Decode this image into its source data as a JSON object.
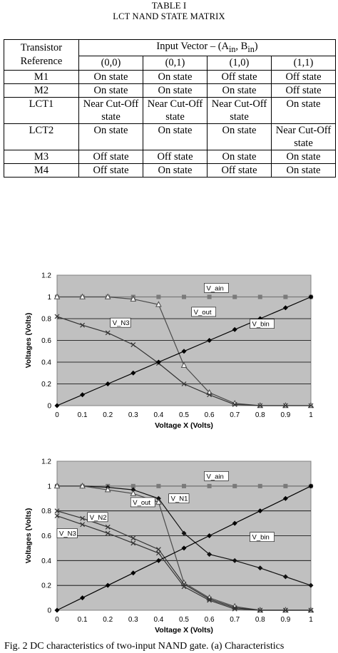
{
  "table": {
    "label": "TABLE I",
    "title": "LCT NAND STATE MATRIX",
    "header_ref": "Transistor Reference",
    "header_input": "Input Vector – (A",
    "header_input_sub_a": "in",
    "header_input_sep": ", B",
    "header_input_sub_b": "in",
    "header_input_end": ")",
    "columns": [
      "(0,0)",
      "(0,1)",
      "(1,0)",
      "(1,1)"
    ],
    "rows": [
      {
        "ref": "M1",
        "cells": [
          "On state",
          "On state",
          "Off state",
          "Off state"
        ]
      },
      {
        "ref": "M2",
        "cells": [
          "On state",
          "On state",
          "On state",
          "Off state"
        ]
      },
      {
        "ref": "LCT1",
        "cells": [
          "Near Cut-Off state",
          "Near Cut-Off state",
          "Near Cut-Off state",
          "On state"
        ]
      },
      {
        "ref": "LCT2",
        "cells": [
          "On state",
          "On state",
          "On state",
          "Near Cut-Off state"
        ]
      },
      {
        "ref": "M3",
        "cells": [
          "Off state",
          "Off state",
          "On state",
          "On state"
        ]
      },
      {
        "ref": "M4",
        "cells": [
          "Off state",
          "On state",
          "Off state",
          "On state"
        ]
      }
    ]
  },
  "chart_data": [
    {
      "type": "line",
      "xlabel": "Voltage X (Volts)",
      "ylabel": "Voltages (Volts)",
      "xlim": [
        0,
        1
      ],
      "ylim": [
        0,
        1.2
      ],
      "x_ticks": [
        "0",
        "0.1",
        "0.2",
        "0.3",
        "0.4",
        "0.5",
        "0.6",
        "0.7",
        "0.8",
        "0.9",
        "1"
      ],
      "y_ticks": [
        "0",
        "0.2",
        "0.4",
        "0.6",
        "0.8",
        "1",
        "1.2"
      ],
      "grid": "horizontal",
      "series": [
        {
          "name": "V_ain",
          "marker": "square",
          "x": [
            0,
            0.1,
            0.2,
            0.3,
            0.4,
            0.5,
            0.6,
            0.7,
            0.8,
            0.9,
            1
          ],
          "y": [
            1,
            1,
            1,
            1,
            1,
            1,
            1,
            1,
            1,
            1,
            1
          ]
        },
        {
          "name": "V_out",
          "marker": "triangle",
          "x": [
            0,
            0.1,
            0.2,
            0.3,
            0.4,
            0.5,
            0.6,
            0.7,
            0.8,
            0.9,
            1
          ],
          "y": [
            1,
            1,
            1,
            0.98,
            0.93,
            0.37,
            0.12,
            0.02,
            0,
            0,
            0
          ]
        },
        {
          "name": "V_N3",
          "marker": "x",
          "x": [
            0,
            0.1,
            0.2,
            0.3,
            0.4,
            0.5,
            0.6,
            0.7,
            0.8,
            0.9,
            1
          ],
          "y": [
            0.82,
            0.74,
            0.67,
            0.56,
            0.39,
            0.2,
            0.1,
            0.01,
            0,
            0,
            0
          ]
        },
        {
          "name": "V_bin",
          "marker": "diamond",
          "x": [
            0,
            0.1,
            0.2,
            0.3,
            0.4,
            0.5,
            0.6,
            0.7,
            0.8,
            0.9,
            1
          ],
          "y": [
            0,
            0.1,
            0.2,
            0.3,
            0.4,
            0.5,
            0.6,
            0.7,
            0.8,
            0.9,
            1
          ]
        }
      ],
      "annotations": [
        {
          "text": "V_ain",
          "x": 0.58,
          "y": 1.06
        },
        {
          "text": "V_out",
          "x": 0.53,
          "y": 0.84
        },
        {
          "text": "V_N3",
          "x": 0.21,
          "y": 0.74
        },
        {
          "text": "V_bin",
          "x": 0.76,
          "y": 0.73
        }
      ]
    },
    {
      "type": "line",
      "xlabel": "Voltage X (Volts)",
      "ylabel": "Voltages (Volts)",
      "xlim": [
        0,
        1
      ],
      "ylim": [
        0,
        1.2
      ],
      "x_ticks": [
        "0",
        "0.1",
        "0.2",
        "0.3",
        "0.4",
        "0.5",
        "0.6",
        "0.7",
        "0.8",
        "0.9",
        "1"
      ],
      "y_ticks": [
        "0",
        "0.2",
        "0.4",
        "0.6",
        "0.8",
        "1",
        "1.2"
      ],
      "grid": "horizontal",
      "series": [
        {
          "name": "V_ain",
          "marker": "square",
          "x": [
            0,
            0.1,
            0.2,
            0.3,
            0.4,
            0.5,
            0.6,
            0.7,
            0.8,
            0.9,
            1
          ],
          "y": [
            1,
            1,
            1,
            1,
            1,
            1,
            1,
            1,
            1,
            1,
            1
          ]
        },
        {
          "name": "V_N1",
          "marker": "diamond",
          "x": [
            0,
            0.1,
            0.2,
            0.3,
            0.4,
            0.5,
            0.6,
            0.7,
            0.8,
            0.9,
            1
          ],
          "y": [
            1,
            1,
            0.99,
            0.97,
            0.9,
            0.62,
            0.45,
            0.4,
            0.34,
            0.27,
            0.2
          ]
        },
        {
          "name": "V_out",
          "marker": "triangle",
          "x": [
            0,
            0.1,
            0.2,
            0.3,
            0.4,
            0.5,
            0.6,
            0.7,
            0.8,
            0.9,
            1
          ],
          "y": [
            1,
            1,
            0.97,
            0.94,
            0.87,
            0.22,
            0.1,
            0.03,
            0,
            0,
            0
          ]
        },
        {
          "name": "V_N2",
          "marker": "x",
          "x": [
            0,
            0.1,
            0.2,
            0.3,
            0.4,
            0.5,
            0.6,
            0.7,
            0.8,
            0.9,
            1
          ],
          "y": [
            0.8,
            0.74,
            0.67,
            0.58,
            0.49,
            0.21,
            0.09,
            0.02,
            0,
            0,
            0
          ]
        },
        {
          "name": "V_N3",
          "marker": "x",
          "x": [
            0,
            0.1,
            0.2,
            0.3,
            0.4,
            0.5,
            0.6,
            0.7,
            0.8,
            0.9,
            1
          ],
          "y": [
            0.76,
            0.69,
            0.62,
            0.54,
            0.46,
            0.19,
            0.08,
            0.01,
            0,
            0,
            0
          ]
        },
        {
          "name": "V_bin",
          "marker": "diamond",
          "x": [
            0,
            0.1,
            0.2,
            0.3,
            0.4,
            0.5,
            0.6,
            0.7,
            0.8,
            0.9,
            1
          ],
          "y": [
            0,
            0.1,
            0.2,
            0.3,
            0.4,
            0.5,
            0.6,
            0.7,
            0.8,
            0.9,
            1
          ]
        }
      ],
      "annotations": [
        {
          "text": "V_ain",
          "x": 0.58,
          "y": 1.06
        },
        {
          "text": "V_N1",
          "x": 0.44,
          "y": 0.88
        },
        {
          "text": "V_out",
          "x": 0.29,
          "y": 0.85
        },
        {
          "text": "V_N2",
          "x": 0.12,
          "y": 0.73
        },
        {
          "text": "V_N3",
          "x": 0.0,
          "y": 0.6
        },
        {
          "text": "V_bin",
          "x": 0.76,
          "y": 0.57
        }
      ]
    }
  ],
  "caption": "Fig. 2 DC characteristics of two-input NAND gate. (a) Characteristics"
}
